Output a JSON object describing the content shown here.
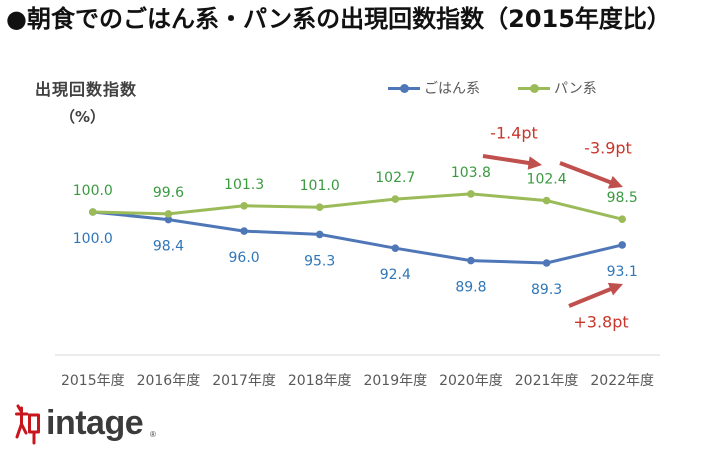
{
  "chart_data": {
    "type": "line",
    "title": "●朝食でのごはん系・パン系の出現回数指数（2015年度比）",
    "xlabel": "",
    "ylabel": "出現回数指数",
    "yunit": "（%）",
    "ylim": [
      70,
      130
    ],
    "grid": false,
    "categories": [
      "2015年度",
      "2016年度",
      "2017年度",
      "2018年度",
      "2019年度",
      "2020年度",
      "2021年度",
      "2022年度"
    ],
    "series": [
      {
        "name": "ごはん系",
        "color": "#4f77b8",
        "label_color": "#2f76b7",
        "values": [
          100.0,
          98.4,
          96.0,
          95.3,
          92.4,
          89.8,
          89.3,
          93.1
        ],
        "data_labels": [
          "100.0",
          "98.4",
          "96.0",
          "95.3",
          "92.4",
          "89.8",
          "89.3",
          "93.1"
        ]
      },
      {
        "name": "パン系",
        "color": "#9bbb59",
        "label_color": "#3a9a40",
        "values": [
          100.0,
          99.6,
          101.3,
          101.0,
          102.7,
          103.8,
          102.4,
          98.5
        ],
        "data_labels": [
          "100.0",
          "99.6",
          "101.3",
          "101.0",
          "102.7",
          "103.8",
          "102.4",
          "98.5"
        ]
      }
    ],
    "annotations": [
      {
        "text": "-1.4pt",
        "color": "#c9372c"
      },
      {
        "text": "-3.9pt",
        "color": "#c9372c"
      },
      {
        "text": "+3.8pt",
        "color": "#c9372c"
      }
    ],
    "arrow_color": "#c0504d",
    "axis_color": "#d9d9d9"
  },
  "logo": {
    "text": "intage",
    "registered": "®",
    "color": "#c8161d"
  }
}
